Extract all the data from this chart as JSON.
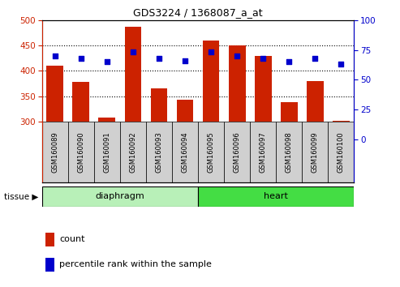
{
  "title": "GDS3224 / 1368087_a_at",
  "samples": [
    "GSM160089",
    "GSM160090",
    "GSM160091",
    "GSM160092",
    "GSM160093",
    "GSM160094",
    "GSM160095",
    "GSM160096",
    "GSM160097",
    "GSM160098",
    "GSM160099",
    "GSM160100"
  ],
  "counts": [
    410,
    378,
    308,
    487,
    365,
    343,
    460,
    450,
    430,
    338,
    380,
    302
  ],
  "percentiles": [
    70,
    68,
    65,
    73,
    68,
    66,
    73,
    70,
    68,
    65,
    68,
    63
  ],
  "baseline": 300,
  "ylim_left": [
    180,
    500
  ],
  "ylim_right": [
    -36.0,
    100
  ],
  "yticks_left": [
    300,
    350,
    400,
    450,
    500
  ],
  "yticks_right": [
    0,
    25,
    50,
    75,
    100
  ],
  "bar_color": "#cc2200",
  "dot_color": "#0000cc",
  "bar_width": 0.65,
  "diaphragm_color": "#b8f0b8",
  "heart_color": "#44dd44",
  "tissue_label": "tissue",
  "legend_count": "count",
  "legend_pct": "percentile rank within the sample",
  "plot_bg": "#ffffff",
  "grid_color": "#000000",
  "left_tick_color": "#cc2200",
  "right_tick_color": "#0000cc",
  "label_bg_color": "#d0d0d0"
}
